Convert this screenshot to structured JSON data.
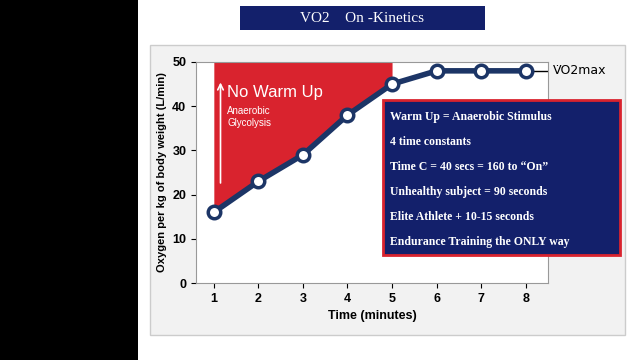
{
  "chart_data": {
    "type": "line",
    "title": "VO2    On -Kinetics",
    "x": [
      1,
      2,
      3,
      4,
      5,
      6,
      7,
      8
    ],
    "values": [
      16,
      23,
      29,
      38,
      45,
      48,
      48,
      48
    ],
    "color": "#1c3566",
    "marker": "o",
    "line_style": "solid",
    "x_label": "Time (minutes)",
    "y_label": "Oxygen per kg of body weight (L/min)",
    "xlim": [
      0.6,
      8.5
    ],
    "ylim": [
      0,
      50
    ],
    "xticks": [
      1,
      2,
      3,
      4,
      5,
      6,
      7,
      8
    ],
    "yticks": [
      0,
      10,
      20,
      30,
      40,
      50
    ],
    "grid": false,
    "vo2max": 48,
    "vo2max_label": "V̇O2max",
    "annotations": [
      "No Warm Up",
      "Anaerobic\nGlycolysis"
    ],
    "notes": [
      "Warm Up = Anaerobic Stimulus",
      "4 time constants",
      "Time C = 40 secs = 160 to “On”",
      "Unhealthy subject = 90 seconds",
      "Elite Athlete + 10-15 seconds",
      "Endurance Training the ONLY way"
    ]
  }
}
